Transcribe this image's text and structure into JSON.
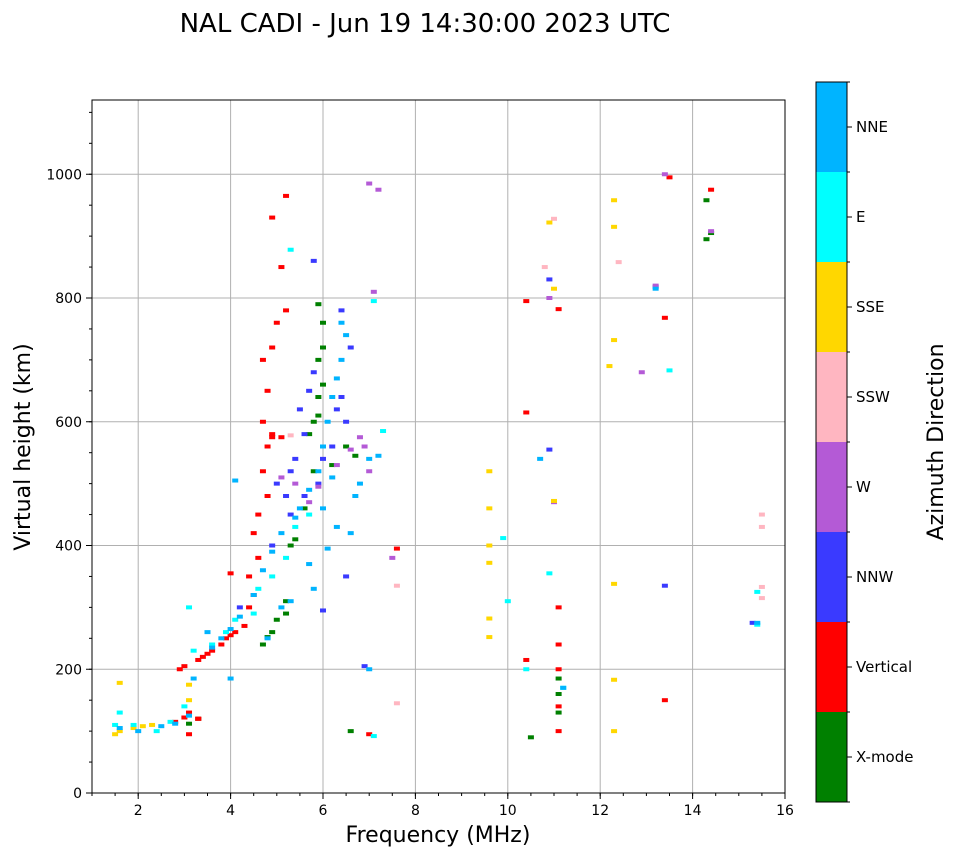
{
  "chart_data": {
    "type": "scatter",
    "title": "NAL CADI - Jun 19 14:30:00 2023 UTC",
    "xlabel": "Frequency (MHz)",
    "ylabel": "Virtual height (km)",
    "xlim": [
      1,
      16
    ],
    "ylim": [
      0,
      1120
    ],
    "xticks": [
      2,
      4,
      6,
      8,
      10,
      12,
      14,
      16
    ],
    "yticks": [
      0,
      200,
      400,
      600,
      800,
      1000
    ],
    "grid": true,
    "colorbar": {
      "label": "Azimuth Direction",
      "categories": [
        {
          "name": "X-mode",
          "color": "#008000"
        },
        {
          "name": "Vertical",
          "color": "#ff0000"
        },
        {
          "name": "NNW",
          "color": "#3a3aff"
        },
        {
          "name": "W",
          "color": "#b45ad6"
        },
        {
          "name": "SSW",
          "color": "#ffb6c1"
        },
        {
          "name": "SSE",
          "color": "#ffd700"
        },
        {
          "name": "E",
          "color": "#00ffff"
        },
        {
          "name": "NNE",
          "color": "#00b4ff"
        }
      ]
    },
    "series": [
      {
        "name": "X-mode",
        "points": [
          [
            3.1,
            112
          ],
          [
            3.3,
            120
          ],
          [
            4.7,
            240
          ],
          [
            4.8,
            252
          ],
          [
            4.9,
            260
          ],
          [
            5.0,
            280
          ],
          [
            5.2,
            290
          ],
          [
            5.2,
            310
          ],
          [
            5.3,
            400
          ],
          [
            5.4,
            410
          ],
          [
            5.6,
            460
          ],
          [
            5.8,
            520
          ],
          [
            5.7,
            580
          ],
          [
            5.8,
            600
          ],
          [
            5.9,
            610
          ],
          [
            5.9,
            640
          ],
          [
            6.0,
            660
          ],
          [
            5.9,
            700
          ],
          [
            6.0,
            720
          ],
          [
            6.0,
            760
          ],
          [
            5.9,
            790
          ],
          [
            6.2,
            530
          ],
          [
            6.5,
            560
          ],
          [
            6.7,
            545
          ],
          [
            6.6,
            100
          ],
          [
            10.5,
            90
          ],
          [
            11.1,
            130
          ],
          [
            11.1,
            160
          ],
          [
            11.1,
            185
          ],
          [
            14.3,
            895
          ],
          [
            14.3,
            958
          ],
          [
            14.4,
            905
          ]
        ]
      },
      {
        "name": "Vertical",
        "points": [
          [
            2.8,
            115
          ],
          [
            3.0,
            122
          ],
          [
            3.1,
            130
          ],
          [
            2.9,
            200
          ],
          [
            3.0,
            205
          ],
          [
            3.3,
            215
          ],
          [
            3.4,
            220
          ],
          [
            3.5,
            225
          ],
          [
            3.6,
            230
          ],
          [
            3.8,
            240
          ],
          [
            3.9,
            250
          ],
          [
            4.0,
            255
          ],
          [
            4.1,
            260
          ],
          [
            4.3,
            270
          ],
          [
            4.4,
            300
          ],
          [
            4.5,
            320
          ],
          [
            4.4,
            350
          ],
          [
            4.6,
            380
          ],
          [
            4.5,
            420
          ],
          [
            4.6,
            450
          ],
          [
            4.8,
            480
          ],
          [
            4.7,
            520
          ],
          [
            4.8,
            560
          ],
          [
            4.9,
            580
          ],
          [
            4.7,
            600
          ],
          [
            4.8,
            650
          ],
          [
            4.7,
            700
          ],
          [
            4.9,
            720
          ],
          [
            5.0,
            760
          ],
          [
            5.2,
            780
          ],
          [
            5.1,
            850
          ],
          [
            4.9,
            930
          ],
          [
            5.2,
            965
          ],
          [
            4.9,
            575
          ],
          [
            5.1,
            575
          ],
          [
            3.3,
            120
          ],
          [
            3.3,
            120
          ],
          [
            4.0,
            355
          ],
          [
            7.0,
            95
          ],
          [
            10.4,
            615
          ],
          [
            10.4,
            215
          ],
          [
            10.4,
            795
          ],
          [
            11.1,
            782
          ],
          [
            11.1,
            300
          ],
          [
            11.1,
            240
          ],
          [
            11.1,
            200
          ],
          [
            11.1,
            140
          ],
          [
            11.1,
            100
          ],
          [
            13.4,
            768
          ],
          [
            13.4,
            150
          ],
          [
            13.5,
            995
          ],
          [
            14.4,
            975
          ],
          [
            7.6,
            395
          ],
          [
            3.1,
            95
          ]
        ]
      },
      {
        "name": "NNW",
        "points": [
          [
            5.0,
            500
          ],
          [
            5.2,
            480
          ],
          [
            5.3,
            520
          ],
          [
            5.4,
            540
          ],
          [
            5.6,
            580
          ],
          [
            5.5,
            620
          ],
          [
            5.7,
            650
          ],
          [
            5.8,
            680
          ],
          [
            5.9,
            500
          ],
          [
            6.0,
            540
          ],
          [
            6.2,
            560
          ],
          [
            6.3,
            620
          ],
          [
            6.4,
            640
          ],
          [
            6.5,
            600
          ],
          [
            6.6,
            720
          ],
          [
            6.4,
            780
          ],
          [
            5.8,
            860
          ],
          [
            4.9,
            400
          ],
          [
            5.6,
            480
          ],
          [
            5.3,
            450
          ],
          [
            6.5,
            350
          ],
          [
            6.0,
            295
          ],
          [
            6.9,
            205
          ],
          [
            10.9,
            555
          ],
          [
            10.9,
            830
          ],
          [
            13.2,
            818
          ],
          [
            13.4,
            335
          ],
          [
            15.3,
            275
          ],
          [
            4.2,
            300
          ]
        ]
      },
      {
        "name": "W",
        "points": [
          [
            5.1,
            510
          ],
          [
            5.4,
            500
          ],
          [
            5.7,
            470
          ],
          [
            5.9,
            495
          ],
          [
            6.3,
            530
          ],
          [
            6.6,
            555
          ],
          [
            6.8,
            575
          ],
          [
            6.9,
            560
          ],
          [
            7.0,
            520
          ],
          [
            7.1,
            810
          ],
          [
            7.2,
            975
          ],
          [
            7.0,
            985
          ],
          [
            10.9,
            800
          ],
          [
            11.0,
            470
          ],
          [
            13.4,
            1000
          ],
          [
            13.2,
            820
          ],
          [
            12.9,
            680
          ],
          [
            7.5,
            380
          ],
          [
            14.4,
            908
          ]
        ]
      },
      {
        "name": "SSW",
        "points": [
          [
            7.6,
            335
          ],
          [
            7.6,
            145
          ],
          [
            10.8,
            850
          ],
          [
            11.0,
            928
          ],
          [
            12.4,
            858
          ],
          [
            15.5,
            450
          ],
          [
            15.5,
            430
          ],
          [
            15.5,
            333
          ],
          [
            15.5,
            315
          ],
          [
            5.3,
            578
          ]
        ]
      },
      {
        "name": "SSE",
        "points": [
          [
            1.5,
            95
          ],
          [
            1.6,
            100
          ],
          [
            1.6,
            178
          ],
          [
            1.9,
            105
          ],
          [
            2.1,
            108
          ],
          [
            2.3,
            110
          ],
          [
            3.1,
            175
          ],
          [
            3.1,
            150
          ],
          [
            9.6,
            520
          ],
          [
            9.6,
            460
          ],
          [
            9.6,
            400
          ],
          [
            9.6,
            372
          ],
          [
            9.6,
            282
          ],
          [
            9.6,
            252
          ],
          [
            10.9,
            922
          ],
          [
            11.0,
            815
          ],
          [
            11.0,
            472
          ],
          [
            12.3,
            958
          ],
          [
            12.3,
            915
          ],
          [
            12.3,
            732
          ],
          [
            12.2,
            690
          ],
          [
            12.3,
            338
          ],
          [
            12.3,
            183
          ],
          [
            12.3,
            100
          ]
        ]
      },
      {
        "name": "E",
        "points": [
          [
            1.5,
            110
          ],
          [
            1.6,
            130
          ],
          [
            1.9,
            110
          ],
          [
            2.4,
            100
          ],
          [
            2.7,
            115
          ],
          [
            3.0,
            140
          ],
          [
            3.2,
            230
          ],
          [
            3.6,
            240
          ],
          [
            3.9,
            260
          ],
          [
            4.1,
            280
          ],
          [
            4.5,
            290
          ],
          [
            4.6,
            330
          ],
          [
            4.9,
            350
          ],
          [
            5.2,
            380
          ],
          [
            5.4,
            430
          ],
          [
            5.7,
            450
          ],
          [
            7.3,
            585
          ],
          [
            7.1,
            795
          ],
          [
            5.3,
            878
          ],
          [
            9.9,
            412
          ],
          [
            10.0,
            310
          ],
          [
            10.4,
            200
          ],
          [
            10.9,
            355
          ],
          [
            11.2,
            170
          ],
          [
            13.5,
            683
          ],
          [
            15.4,
            325
          ],
          [
            15.4,
            272
          ],
          [
            7.1,
            92
          ],
          [
            3.1,
            300
          ]
        ]
      },
      {
        "name": "NNE",
        "points": [
          [
            1.6,
            105
          ],
          [
            2.0,
            100
          ],
          [
            2.5,
            108
          ],
          [
            2.8,
            112
          ],
          [
            3.1,
            125
          ],
          [
            3.2,
            185
          ],
          [
            3.5,
            260
          ],
          [
            3.6,
            235
          ],
          [
            3.8,
            250
          ],
          [
            4.0,
            265
          ],
          [
            4.2,
            285
          ],
          [
            4.5,
            320
          ],
          [
            4.7,
            360
          ],
          [
            4.9,
            390
          ],
          [
            5.1,
            420
          ],
          [
            5.4,
            445
          ],
          [
            5.5,
            460
          ],
          [
            5.7,
            490
          ],
          [
            5.9,
            520
          ],
          [
            6.0,
            560
          ],
          [
            6.1,
            600
          ],
          [
            6.2,
            640
          ],
          [
            6.3,
            670
          ],
          [
            6.4,
            700
          ],
          [
            6.5,
            740
          ],
          [
            6.4,
            760
          ],
          [
            6.6,
            420
          ],
          [
            6.3,
            430
          ],
          [
            6.1,
            395
          ],
          [
            5.7,
            370
          ],
          [
            5.8,
            330
          ],
          [
            5.3,
            310
          ],
          [
            5.1,
            300
          ],
          [
            4.8,
            250
          ],
          [
            6.7,
            480
          ],
          [
            6.8,
            500
          ],
          [
            7.0,
            540
          ],
          [
            7.2,
            545
          ],
          [
            6.2,
            510
          ],
          [
            6.0,
            460
          ],
          [
            4.1,
            505
          ],
          [
            4.0,
            185
          ],
          [
            7.0,
            200
          ],
          [
            10.7,
            540
          ],
          [
            11.2,
            170
          ],
          [
            13.2,
            815
          ],
          [
            15.4,
            275
          ]
        ]
      }
    ]
  }
}
